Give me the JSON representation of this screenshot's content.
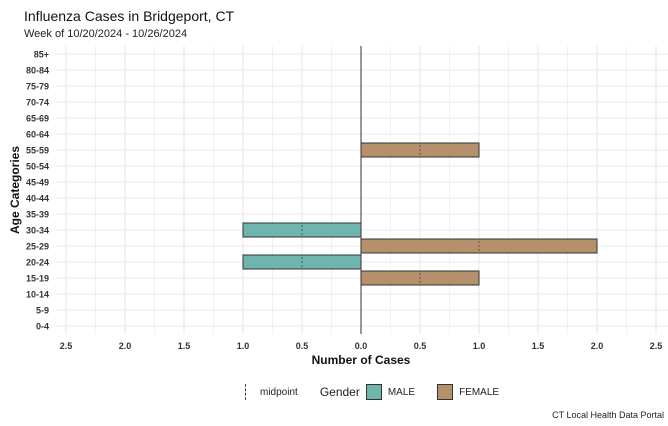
{
  "chart_data": {
    "type": "bar",
    "orientation": "horizontal",
    "title": "Influenza Cases in Bridgeport, CT",
    "subtitle": "Week of 10/20/2024 - 10/26/2024",
    "xlabel": "Number of Cases",
    "ylabel": "Age Categories",
    "categories": [
      "0-4",
      "5-9",
      "10-14",
      "15-19",
      "20-24",
      "25-29",
      "30-34",
      "35-39",
      "40-44",
      "45-49",
      "50-54",
      "55-59",
      "60-64",
      "65-69",
      "70-74",
      "75-79",
      "80-84",
      "85+"
    ],
    "series": [
      {
        "name": "MALE",
        "color": "#6fb5ae",
        "direction": "left",
        "values": [
          0,
          0,
          0,
          0,
          1,
          0,
          1,
          0,
          0,
          0,
          0,
          0,
          0,
          0,
          0,
          0,
          0,
          0
        ]
      },
      {
        "name": "FEMALE",
        "color": "#b5916b",
        "direction": "right",
        "values": [
          0,
          0,
          0,
          1,
          0,
          2,
          0,
          0,
          0,
          0,
          0,
          1,
          0,
          0,
          0,
          0,
          0,
          0
        ]
      }
    ],
    "xlim": [
      -2.5,
      2.5
    ],
    "x_ticks": [
      -2.5,
      -2,
      -1.5,
      -1,
      -0.5,
      0,
      0.5,
      1,
      1.5,
      2,
      2.5
    ],
    "x_tick_labels": [
      "2.5",
      "2.0",
      "1.5",
      "1.0",
      "0.5",
      "0.0",
      "0.5",
      "1.0",
      "1.5",
      "2.0",
      "2.5"
    ],
    "grid": true,
    "legend_position": "bottom",
    "legend_title": "Gender",
    "midpoint_label": "midpoint",
    "caption": "CT Local Health Data Portal"
  }
}
